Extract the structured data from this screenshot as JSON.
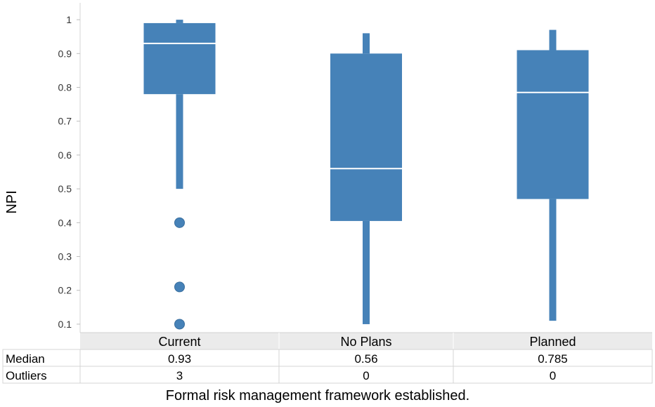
{
  "chart_data": {
    "type": "box",
    "ylabel": "NPI",
    "xlabel": "Formal risk management framework established.",
    "yticks": [
      "0.1",
      "0.2",
      "0.3",
      "0.4",
      "0.5",
      "0.6",
      "0.7",
      "0.8",
      "0.9",
      "1"
    ],
    "ylim": [
      0.075,
      1.05
    ],
    "grid": false,
    "color": "#4682b8",
    "categories": [
      "Current",
      "No Plans",
      "Planned"
    ],
    "boxes": [
      {
        "category": "Current",
        "whisker_low": 0.5,
        "q1": 0.78,
        "median": 0.93,
        "q3": 0.99,
        "whisker_high": 1.0,
        "outlier_values": [
          0.4,
          0.21,
          0.1
        ]
      },
      {
        "category": "No Plans",
        "whisker_low": 0.1,
        "q1": 0.405,
        "median": 0.56,
        "q3": 0.9,
        "whisker_high": 0.96,
        "outlier_values": []
      },
      {
        "category": "Planned",
        "whisker_low": 0.11,
        "q1": 0.47,
        "median": 0.785,
        "q3": 0.91,
        "whisker_high": 0.97,
        "outlier_values": []
      }
    ],
    "table": {
      "rows": [
        {
          "label": "Median",
          "values": [
            "0.93",
            "0.56",
            "0.785"
          ]
        },
        {
          "label": "Outliers",
          "values": [
            "3",
            "0",
            "0"
          ]
        }
      ]
    }
  }
}
